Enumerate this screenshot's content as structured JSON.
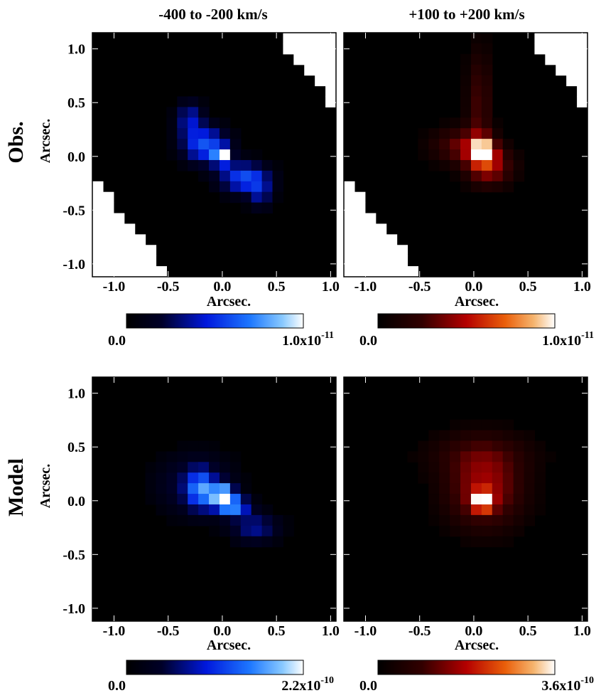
{
  "chart_data": {
    "type": "heatmap",
    "column_titles": [
      "-400 to -200 km/s",
      "+100 to +200 km/s"
    ],
    "row_labels": [
      "Obs.",
      "Model"
    ],
    "xlabel": "Arcsec.",
    "ylabel": "Arcsec.",
    "xlim": [
      -1.2,
      1.05
    ],
    "ylim": [
      -1.12,
      1.15
    ],
    "ticks": [
      -1.0,
      -0.5,
      0.0,
      0.5,
      1.0
    ],
    "tick_labels": [
      "-1.0",
      "-0.5",
      "0.0",
      "0.5",
      "1.0"
    ],
    "panels": [
      {
        "id": "obs-blue",
        "row": "Obs.",
        "column": "-400 to -200 km/s",
        "colormap": "blue",
        "colorbar": {
          "min_label": "0.0",
          "max_label": "1.0x10",
          "max_exponent": "-11",
          "min": 0.0,
          "max": 1e-11
        },
        "mask": "diagonal",
        "blobs": [
          {
            "x": -0.3,
            "y": 0.35,
            "sx": 0.09,
            "sy": 0.12,
            "amp": 0.38
          },
          {
            "x": -0.15,
            "y": 0.1,
            "sx": 0.15,
            "sy": 0.12,
            "amp": 0.6
          },
          {
            "x": 0.0,
            "y": 0.0,
            "sx": 0.05,
            "sy": 0.05,
            "amp": 0.95
          },
          {
            "x": 0.2,
            "y": -0.2,
            "sx": 0.16,
            "sy": 0.1,
            "amp": 0.58
          },
          {
            "x": 0.35,
            "y": -0.35,
            "sx": 0.08,
            "sy": 0.1,
            "amp": 0.3
          }
        ]
      },
      {
        "id": "obs-red",
        "row": "Obs.",
        "column": "+100 to +200 km/s",
        "colormap": "red",
        "colorbar": {
          "min_label": "0.0",
          "max_label": "1.0x10",
          "max_exponent": "-11",
          "min": 0.0,
          "max": 1e-11
        },
        "mask": "diagonal",
        "blobs": [
          {
            "x": 0.05,
            "y": 0.5,
            "sx": 0.08,
            "sy": 0.35,
            "amp": 0.28
          },
          {
            "x": 0.08,
            "y": 0.05,
            "sx": 0.07,
            "sy": 0.07,
            "amp": 0.95
          },
          {
            "x": 0.15,
            "y": -0.1,
            "sx": 0.15,
            "sy": 0.12,
            "amp": 0.45
          },
          {
            "x": -0.1,
            "y": 0.1,
            "sx": 0.2,
            "sy": 0.12,
            "amp": 0.35
          }
        ]
      },
      {
        "id": "model-blue",
        "row": "Model",
        "column": "-400 to -200 km/s",
        "colormap": "blue",
        "colorbar": {
          "min_label": "0.0",
          "max_label": "2.2x10",
          "max_exponent": "-10",
          "min": 0.0,
          "max": 2.2e-10
        },
        "mask": "none",
        "blobs": [
          {
            "x": -0.25,
            "y": 0.15,
            "sx": 0.25,
            "sy": 0.2,
            "amp": 0.28
          },
          {
            "x": 0.0,
            "y": 0.05,
            "sx": 0.07,
            "sy": 0.07,
            "amp": 0.95
          },
          {
            "x": -0.2,
            "y": 0.1,
            "sx": 0.08,
            "sy": 0.12,
            "amp": 0.55
          },
          {
            "x": 0.1,
            "y": -0.05,
            "sx": 0.1,
            "sy": 0.06,
            "amp": 0.7
          },
          {
            "x": 0.3,
            "y": -0.25,
            "sx": 0.16,
            "sy": 0.1,
            "amp": 0.35
          }
        ]
      },
      {
        "id": "model-red",
        "row": "Model",
        "column": "+100 to +200 km/s",
        "colormap": "red",
        "colorbar": {
          "min_label": "0.0",
          "max_label": "3.6x10",
          "max_exponent": "-10",
          "min": 0.0,
          "max": 3.6e-10
        },
        "mask": "none",
        "blobs": [
          {
            "x": 0.08,
            "y": 0.0,
            "sx": 0.06,
            "sy": 0.06,
            "amp": 0.95
          },
          {
            "x": 0.1,
            "y": 0.1,
            "sx": 0.25,
            "sy": 0.25,
            "amp": 0.45
          },
          {
            "x": 0.05,
            "y": 0.45,
            "sx": 0.35,
            "sy": 0.15,
            "amp": 0.18
          }
        ]
      }
    ]
  }
}
